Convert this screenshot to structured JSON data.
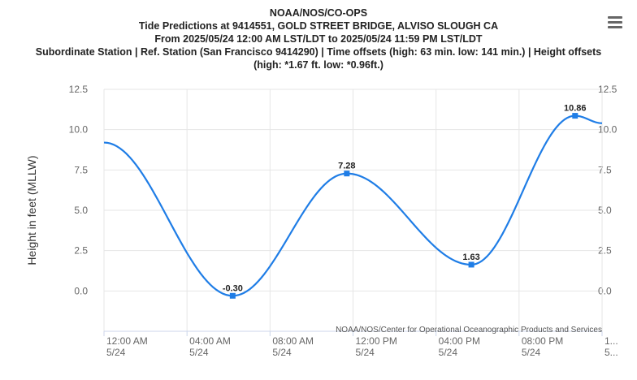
{
  "titles": {
    "line1": "NOAA/NOS/CO-OPS",
    "line2": "Tide Predictions at 9414551, GOLD STREET BRIDGE, ALVISO SLOUGH CA",
    "line3": "From 2025/05/24 12:00 AM LST/LDT to 2025/05/24 11:59 PM LST/LDT",
    "line4": "Subordinate Station | Ref. Station (San Francisco 9414290) | Time offsets (high: 63 min. low: 141 min.) | Height offsets",
    "line5": "(high: *1.67 ft. low: *0.96ft.)"
  },
  "menu_icon": "hamburger-menu-icon",
  "credit": "NOAA/NOS/Center for Operational Oceanographic Products and Services",
  "colors": {
    "series": "#1f7de6",
    "grid": "#e6e6e6",
    "axis": "#ccd6eb"
  },
  "chart_data": {
    "type": "line",
    "ylabel": "Height in feet (MLLW)",
    "ylim": [
      -2.5,
      12.5
    ],
    "xlim_hours": [
      0,
      24
    ],
    "y_ticks": [
      "12.5",
      "10.0",
      "7.5",
      "5.0",
      "2.5",
      "0.0"
    ],
    "y_tick_values": [
      12.5,
      10.0,
      7.5,
      5.0,
      2.5,
      0.0
    ],
    "x_ticks": [
      {
        "hour": 0,
        "time": "12:00 AM",
        "date": "5/24"
      },
      {
        "hour": 4,
        "time": "04:00 AM",
        "date": "5/24"
      },
      {
        "hour": 8,
        "time": "08:00 AM",
        "date": "5/24"
      },
      {
        "hour": 12,
        "time": "12:00 PM",
        "date": "5/24"
      },
      {
        "hour": 16,
        "time": "04:00 PM",
        "date": "5/24"
      },
      {
        "hour": 20,
        "time": "08:00 PM",
        "date": "5/24"
      },
      {
        "hour": 24,
        "time": "1...",
        "date": "5..."
      }
    ],
    "series": [
      {
        "points": [
          {
            "hour": 0.0,
            "value": 9.2
          },
          {
            "hour": 6.2,
            "value": -0.3,
            "label": "-0.30"
          },
          {
            "hour": 11.7,
            "value": 7.28,
            "label": "7.28"
          },
          {
            "hour": 17.7,
            "value": 1.63,
            "label": "1.63"
          },
          {
            "hour": 22.7,
            "value": 10.86,
            "label": "10.86"
          },
          {
            "hour": 24.0,
            "value": 10.4
          }
        ]
      }
    ]
  }
}
